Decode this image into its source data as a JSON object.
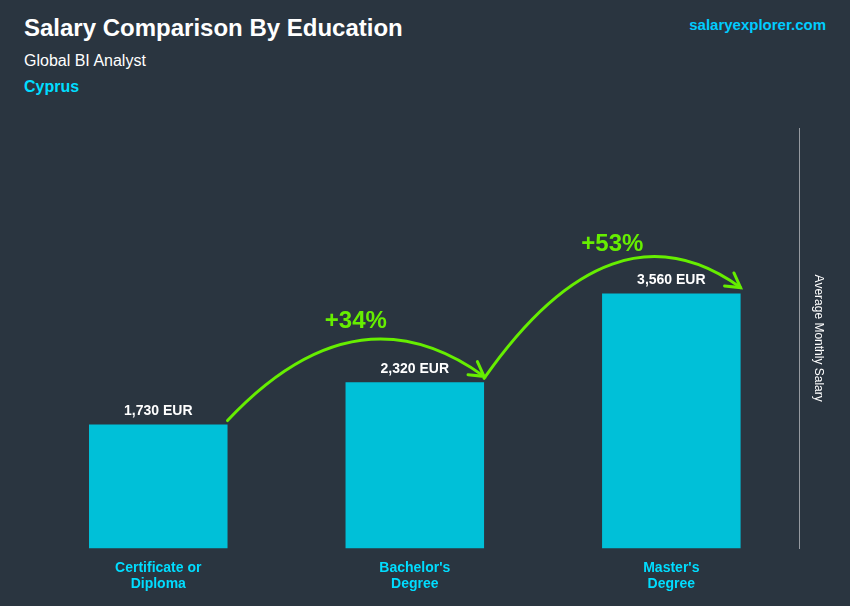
{
  "chart_data": {
    "type": "bar",
    "title": "Salary Comparison By Education",
    "subtitle": "Global BI Analyst",
    "country": "Cyprus",
    "source": "salaryexplorer.com",
    "ylabel": "Average Monthly Salary",
    "categories": [
      "Certificate or\nDiploma",
      "Bachelor's\nDegree",
      "Master's\nDegree"
    ],
    "values": [
      1730,
      2320,
      3560
    ],
    "value_labels": [
      "1,730 EUR",
      "2,320 EUR",
      "3,560 EUR"
    ],
    "data_labels": true,
    "color": "#00c0d8",
    "annotations": [
      {
        "text": "+34%",
        "color": "#66ee00"
      },
      {
        "text": "+53%",
        "color": "#66ee00"
      }
    ],
    "ylim": [
      0,
      5874
    ],
    "yticks": [],
    "tick_labels": "x",
    "grid": false
  }
}
